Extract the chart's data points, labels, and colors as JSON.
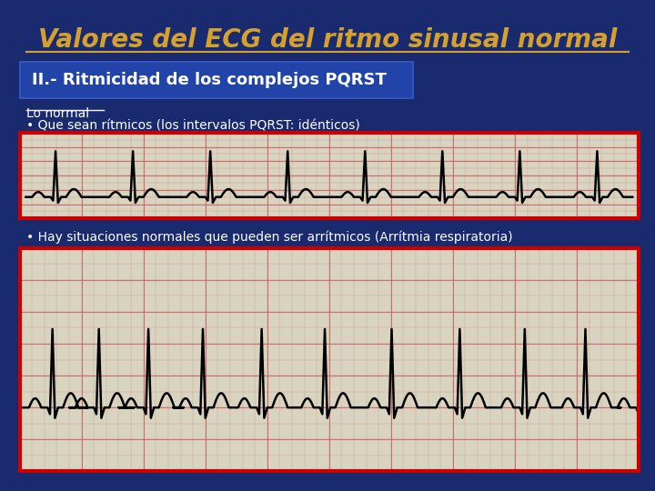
{
  "title": "Valores del ECG del ritmo sinusal normal",
  "subtitle": "II.- Ritmicidad de los complejos PQRST",
  "label_normal": "Lo normal",
  "bullet1": "• Que sean rítmicos (los intervalos PQRST: idénticos)",
  "bullet2": "• Hay situaciones normales que pueden ser arrítmicos (Arrítmia respiratoria)",
  "bg_color": "#1a2a6e",
  "title_color": "#d4a030",
  "subtitle_color": "#ffffff",
  "subtitle_bg": "#2244aa",
  "text_color": "#ffffff",
  "ecg_border_color": "#cc0000",
  "ecg_bg": "#d8d4c0",
  "grid_minor_color": "#cc8888",
  "grid_major_color": "#cc6666"
}
